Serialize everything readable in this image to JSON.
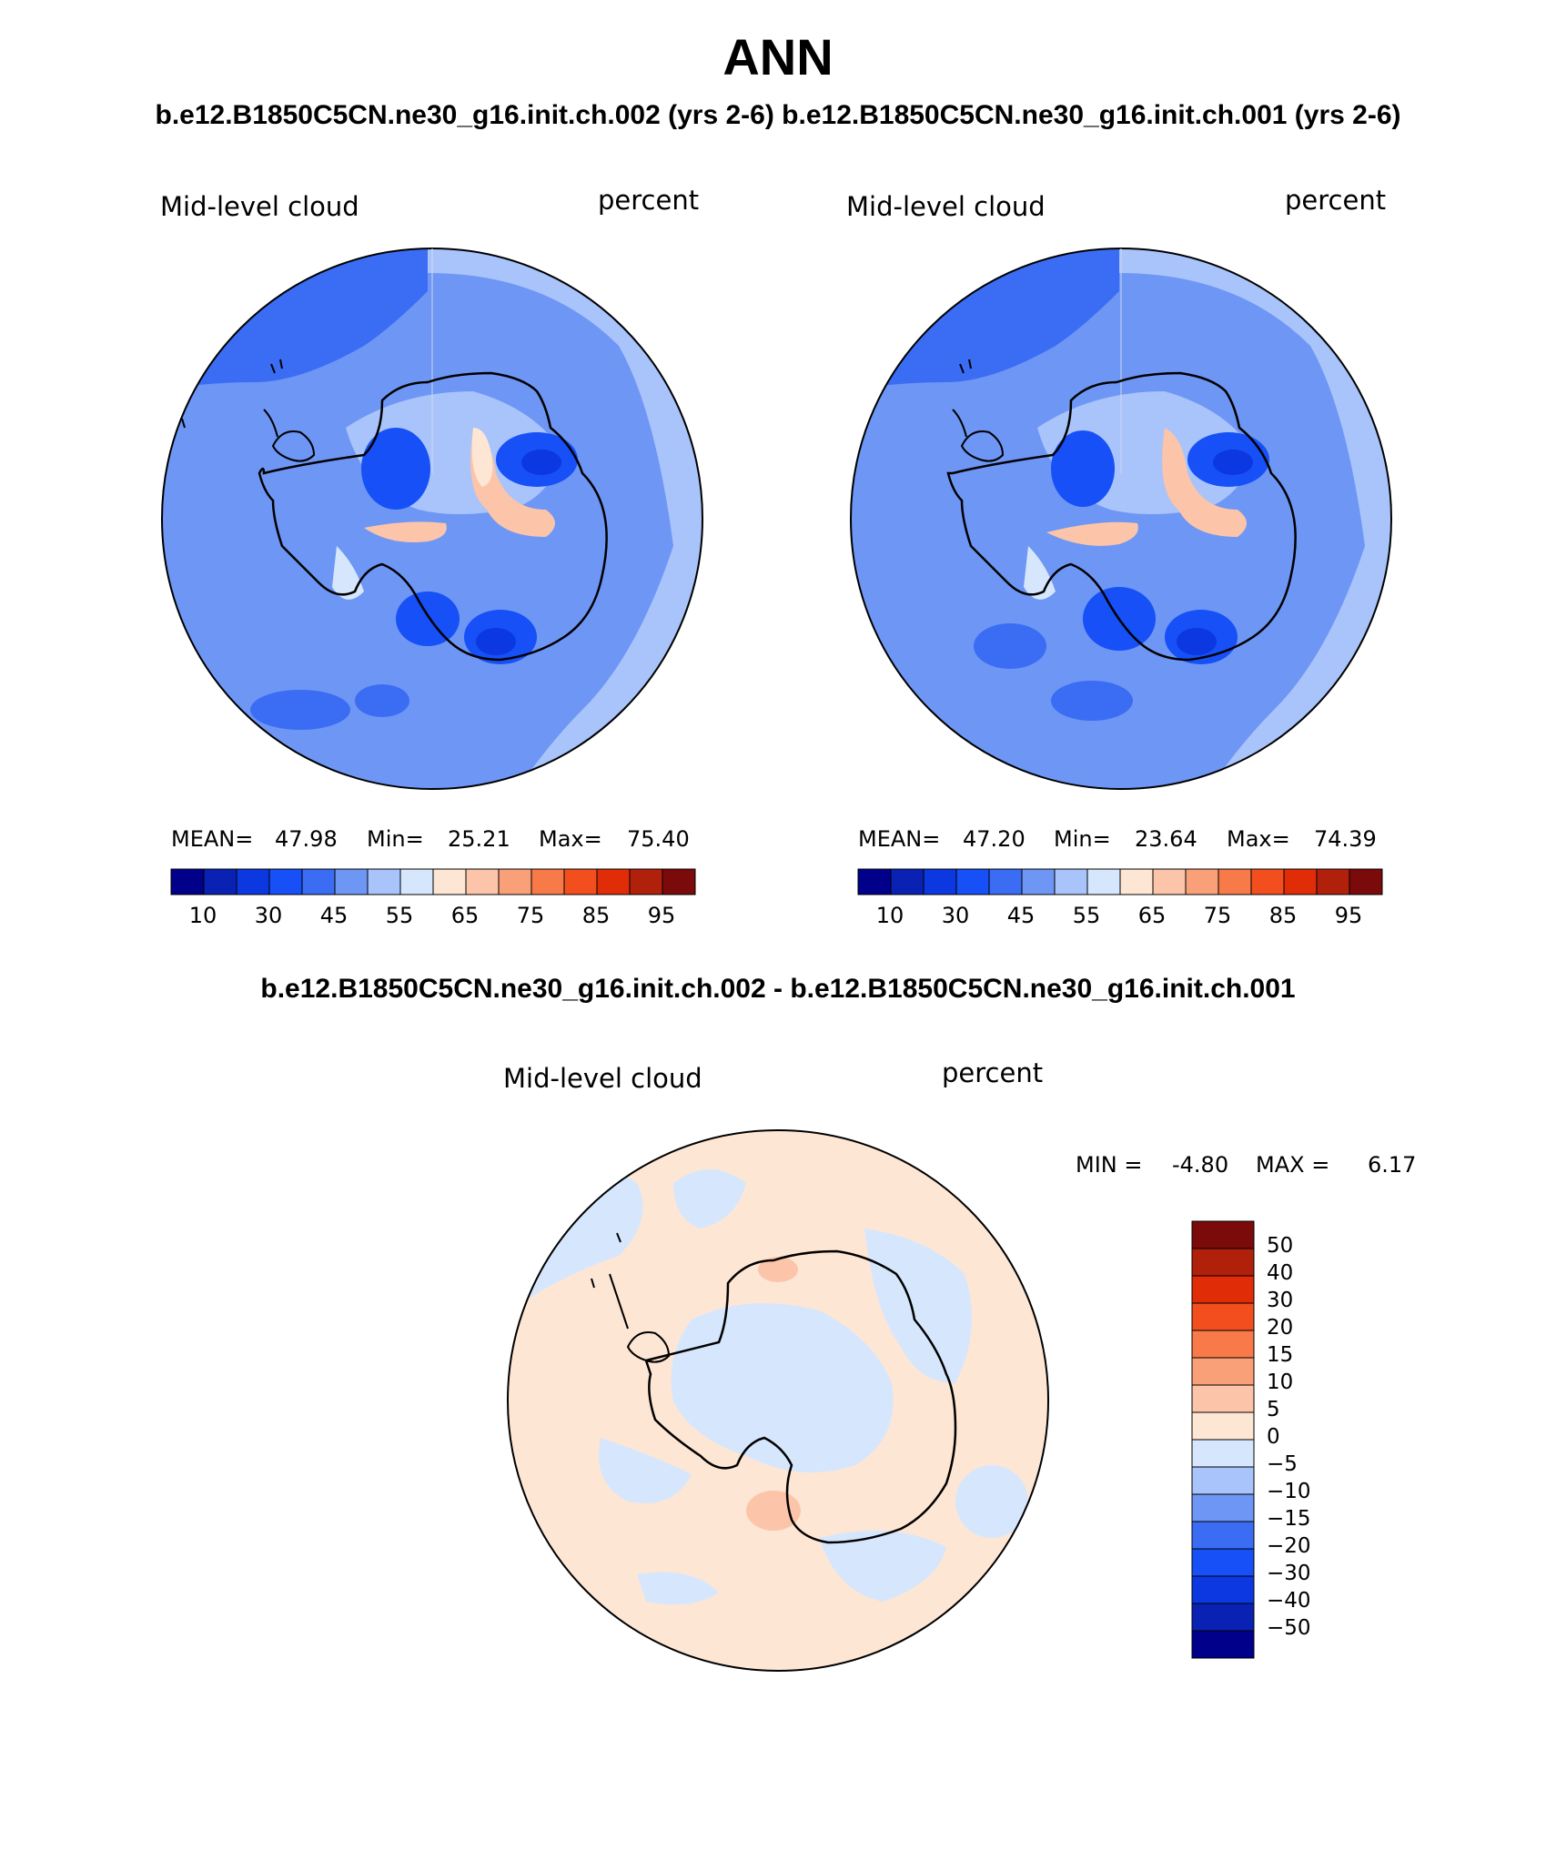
{
  "header": {
    "title": "ANN",
    "case_line": "b.e12.B1850C5CN.ne30_g16.init.ch.002 (yrs 2-6) b.e12.B1850C5CN.ne30_g16.init.ch.001 (yrs 2-6)",
    "diff_line": "b.e12.B1850C5CN.ne30_g16.init.ch.002 - b.e12.B1850C5CN.ne30_g16.init.ch.001"
  },
  "panels": [
    {
      "variable": "Mid-level cloud",
      "units": "percent",
      "mean_label": "MEAN=",
      "mean": "47.98",
      "min_label": "Min=",
      "min": "25.21",
      "max_label": "Max=",
      "max": "75.40"
    },
    {
      "variable": "Mid-level cloud",
      "units": "percent",
      "mean_label": "MEAN=",
      "mean": "47.20",
      "min_label": "Min=",
      "min": "23.64",
      "max_label": "Max=",
      "max": "74.39"
    }
  ],
  "diff_panel": {
    "variable": "Mid-level cloud",
    "units": "percent",
    "min_label": "MIN =",
    "min": "-4.80",
    "max_label": "MAX =",
    "max": "6.17"
  },
  "colorbar": {
    "colors": [
      "#00008b",
      "#0a22b4",
      "#0b38e0",
      "#1650f6",
      "#3b6df4",
      "#6e96f4",
      "#a9c3fb",
      "#d6e7fd",
      "#fee6d4",
      "#fcc5a9",
      "#f9a079",
      "#f77a48",
      "#f34f1e",
      "#e02d08",
      "#b0200a",
      "#7b0a0a"
    ],
    "tick_labels": [
      "10",
      "30",
      "45",
      "55",
      "65",
      "75",
      "85",
      "95"
    ]
  },
  "diff_colorbar": {
    "colors_top_to_bottom": [
      "#7b0a0a",
      "#b0200a",
      "#e02d08",
      "#f34f1e",
      "#f77a48",
      "#f9a079",
      "#fcc5a9",
      "#fee6d4",
      "#d6e7fd",
      "#a9c3fb",
      "#6e96f4",
      "#3b6df4",
      "#1650f6",
      "#0b38e0",
      "#0a22b4",
      "#00008b"
    ],
    "tick_labels": [
      "50",
      "40",
      "30",
      "20",
      "15",
      "10",
      "5",
      "0",
      "−5",
      "−10",
      "−15",
      "−20",
      "−30",
      "−40",
      "−50"
    ]
  }
}
